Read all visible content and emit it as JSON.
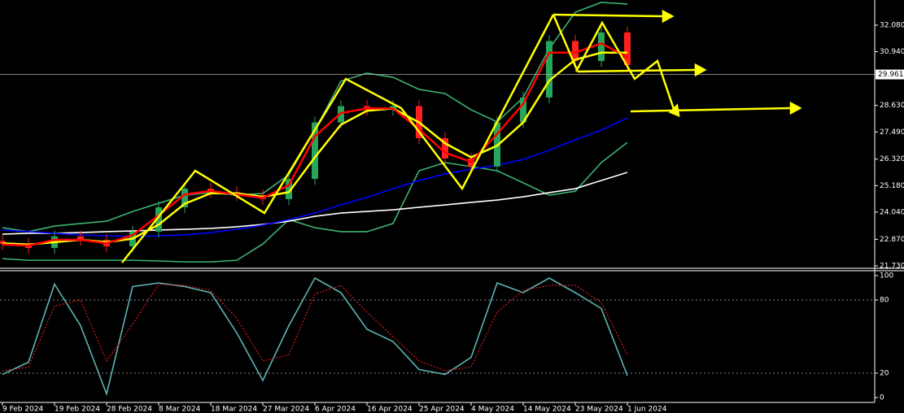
{
  "chart_data": [
    {
      "type": "candlestick",
      "x": [
        0,
        4,
        8,
        12,
        16,
        20,
        24,
        28,
        32,
        36,
        40,
        44,
        48,
        52,
        56,
        60,
        64,
        68,
        72,
        76,
        80,
        84,
        88,
        92,
        96
      ],
      "open": [
        22.8,
        22.67,
        22.5,
        23.0,
        22.85,
        22.57,
        23.2,
        24.25,
        25.05,
        24.9,
        24.77,
        24.6,
        25.47,
        27.9,
        28.6,
        28.44,
        28.6,
        27.22,
        26.35,
        26.0,
        27.9,
        28.97,
        31.4,
        30.54,
        31.77
      ],
      "high": [
        23.05,
        22.92,
        23.25,
        23.25,
        23.1,
        23.45,
        24.5,
        25.3,
        25.3,
        25.15,
        25.02,
        25.72,
        28.15,
        28.85,
        28.85,
        28.85,
        28.85,
        27.47,
        26.6,
        28.15,
        29.22,
        31.65,
        31.65,
        32.02,
        32.02
      ],
      "low": [
        22.42,
        22.25,
        22.25,
        22.6,
        22.32,
        22.32,
        22.95,
        24.0,
        24.65,
        24.52,
        24.35,
        24.35,
        25.22,
        27.65,
        28.19,
        28.19,
        26.97,
        26.1,
        25.75,
        25.75,
        27.65,
        28.72,
        30.29,
        30.29,
        30.12
      ],
      "close": [
        22.67,
        22.5,
        23.0,
        22.85,
        22.57,
        23.2,
        24.25,
        25.05,
        24.9,
        24.77,
        24.6,
        25.47,
        27.9,
        28.6,
        28.44,
        28.6,
        27.22,
        26.35,
        26.0,
        27.9,
        28.97,
        31.4,
        30.54,
        31.77,
        30.37
      ],
      "up_color": "#26a65b",
      "down_color": "#ff2020",
      "series": [
        {
          "color": "#3cb371",
          "values": [
            23.37,
            23.2,
            23.44,
            23.55,
            23.65,
            24.07,
            24.42,
            24.77,
            24.88,
            24.77,
            24.84,
            25.65,
            27.57,
            29.67,
            30.02,
            29.84,
            29.32,
            29.14,
            28.44,
            27.92,
            28.97,
            31.07,
            32.64,
            33.06,
            32.99
          ]
        },
        {
          "color": "#3cb371",
          "values": [
            22.04,
            21.97,
            21.97,
            21.97,
            21.97,
            21.97,
            21.94,
            21.9,
            21.9,
            21.97,
            22.67,
            23.72,
            23.37,
            23.2,
            23.2,
            23.55,
            25.82,
            26.17,
            26.0,
            25.82,
            25.3,
            24.77,
            24.94,
            26.17,
            27.04
          ]
        },
        {
          "color": "#ffffff",
          "values": [
            23.09,
            23.13,
            23.13,
            23.16,
            23.2,
            23.23,
            23.27,
            23.3,
            23.34,
            23.41,
            23.51,
            23.65,
            23.86,
            24.0,
            24.07,
            24.14,
            24.25,
            24.35,
            24.46,
            24.56,
            24.7,
            24.88,
            25.05,
            25.4,
            25.75
          ]
        },
        {
          "color": "#0000ff",
          "values": [
            23.27,
            23.2,
            23.13,
            23.06,
            23.02,
            22.99,
            23.02,
            23.06,
            23.16,
            23.3,
            23.48,
            23.72,
            24.0,
            24.35,
            24.67,
            25.05,
            25.4,
            25.68,
            25.89,
            26.06,
            26.31,
            26.7,
            27.15,
            27.57,
            28.09
          ]
        },
        {
          "color": "#ffff00",
          "values": [
            22.7,
            22.65,
            22.75,
            22.85,
            22.75,
            22.9,
            23.5,
            24.4,
            24.85,
            24.85,
            24.7,
            24.9,
            26.4,
            27.8,
            28.4,
            28.5,
            27.9,
            27.0,
            26.4,
            26.9,
            27.9,
            29.7,
            30.6,
            30.9,
            30.9
          ]
        },
        {
          "color": "#ff0000",
          "values": [
            22.65,
            22.6,
            22.85,
            22.85,
            22.7,
            23.05,
            23.9,
            24.8,
            24.95,
            24.8,
            24.65,
            25.2,
            27.3,
            28.3,
            28.5,
            28.5,
            27.6,
            26.6,
            26.2,
            27.4,
            28.7,
            30.9,
            30.9,
            31.3,
            30.7
          ]
        }
      ],
      "xlim": [
        -0.375,
        134
      ],
      "ylim": [
        21.625,
        33.164
      ],
      "yticks": [
        {
          "value": 32.08,
          "label": "32.080"
        },
        {
          "value": 30.94,
          "label": "30.940"
        },
        {
          "value": 28.63,
          "label": "28.630"
        },
        {
          "value": 27.49,
          "label": "27.490"
        },
        {
          "value": 26.32,
          "label": "26.320"
        },
        {
          "value": 25.18,
          "label": "25.180"
        },
        {
          "value": 24.04,
          "label": "24.040"
        },
        {
          "value": 22.87,
          "label": "22.870"
        },
        {
          "value": 21.73,
          "label": "21.730"
        }
      ],
      "current_price": 29.961,
      "xticks": [
        {
          "value": 0,
          "label": "9 Feb 2024"
        },
        {
          "value": 8,
          "label": "19 Feb 2024"
        },
        {
          "value": 16,
          "label": "28 Feb 2024"
        },
        {
          "value": 24,
          "label": "8 Mar 2024"
        },
        {
          "value": 32,
          "label": "18 Mar 2024"
        },
        {
          "value": 40,
          "label": "27 Mar 2024"
        },
        {
          "value": 48,
          "label": "6 Apr 2024"
        },
        {
          "value": 56,
          "label": "16 Apr 2024"
        },
        {
          "value": 64,
          "label": "25 Apr 2024"
        },
        {
          "value": 72,
          "label": "4 May 2024"
        },
        {
          "value": 80,
          "label": "14 May 2024"
        },
        {
          "value": 88,
          "label": "23 May 2024"
        },
        {
          "value": 96,
          "label": "1 Jun 2024"
        }
      ]
    },
    {
      "type": "line",
      "x": [
        0,
        4,
        8,
        12,
        16,
        20,
        24,
        28,
        32,
        36,
        40,
        44,
        48,
        52,
        56,
        60,
        64,
        68,
        72,
        76,
        80,
        84,
        88,
        92,
        96
      ],
      "series": [
        {
          "color": "#5fb3b3",
          "values": [
            19,
            29,
            93,
            59,
            3,
            91,
            94,
            91,
            86,
            53,
            14,
            59,
            98,
            86,
            56,
            46,
            23,
            19,
            33,
            94,
            86,
            98,
            86,
            73,
            18
          ]
        },
        {
          "color": "#ff2020",
          "dashed": true,
          "values": [
            22,
            25,
            75,
            80,
            30,
            60,
            93,
            92,
            88,
            65,
            30,
            35,
            85,
            92,
            70,
            50,
            30,
            22,
            25,
            70,
            88,
            92,
            92,
            78,
            35
          ]
        }
      ],
      "xlim": [
        -0.375,
        134
      ],
      "ylim": [
        -4,
        104
      ],
      "yticks": [
        0,
        20,
        80,
        100
      ],
      "levels": [
        20,
        80
      ]
    }
  ]
}
